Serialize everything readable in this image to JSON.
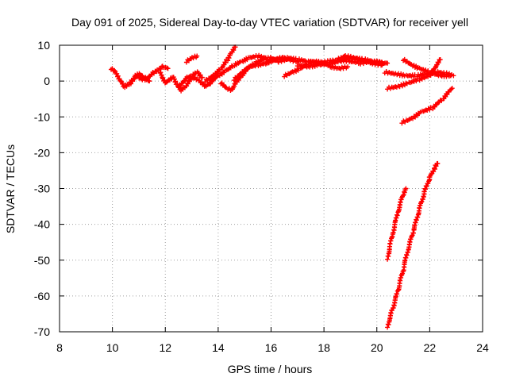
{
  "chart_data": {
    "type": "scatter",
    "title": "Day 091 of 2025, Sidereal Day-to-day VTEC variation (SDTVAR) for receiver yell",
    "xlabel": "GPS time / hours",
    "ylabel": "SDTVAR / TECUs",
    "xlim": [
      8,
      24
    ],
    "ylim": [
      -70,
      10
    ],
    "xticks": [
      "8",
      "10",
      "12",
      "14",
      "16",
      "18",
      "20",
      "22",
      "24"
    ],
    "yticks": [
      "10",
      "0",
      "-10",
      "-20",
      "-30",
      "-40",
      "-50",
      "-60",
      "-70"
    ],
    "grid": true,
    "marker": "plus",
    "series_color": "#ff0000",
    "series": [
      {
        "segments": [
          [
            [
              9.95,
              3.5
            ],
            [
              10.1,
              2.5
            ],
            [
              10.25,
              0.5
            ],
            [
              10.45,
              -1.5
            ],
            [
              10.6,
              -1.0
            ],
            [
              10.8,
              0.5
            ],
            [
              10.95,
              1.5
            ],
            [
              11.1,
              0.5
            ],
            [
              11.3,
              0.5
            ],
            [
              11.5,
              2.0
            ],
            [
              11.7,
              3.0
            ],
            [
              11.9,
              4.0
            ],
            [
              12.1,
              3.5
            ]
          ],
          [
            [
              10.7,
              -0.5
            ],
            [
              10.85,
              1.5
            ],
            [
              11.0,
              2.0
            ],
            [
              11.2,
              1.0
            ],
            [
              11.4,
              0.0
            ]
          ],
          [
            [
              11.8,
              2.5
            ],
            [
              11.9,
              0.5
            ],
            [
              12.0,
              -0.5
            ],
            [
              12.15,
              0.5
            ],
            [
              12.3,
              1.0
            ],
            [
              12.45,
              -1.0
            ],
            [
              12.6,
              -2.5
            ],
            [
              12.8,
              -1.5
            ],
            [
              12.95,
              0.5
            ],
            [
              13.1,
              1.0
            ],
            [
              13.3,
              0.0
            ],
            [
              13.5,
              -1.5
            ],
            [
              13.7,
              -0.5
            ],
            [
              13.85,
              1.0
            ]
          ],
          [
            [
              12.5,
              -1.5
            ],
            [
              12.7,
              0.0
            ],
            [
              12.8,
              1.0
            ],
            [
              13.0,
              1.5
            ],
            [
              13.2,
              2.5
            ],
            [
              13.4,
              1.0
            ]
          ],
          [
            [
              12.8,
              5.5
            ],
            [
              13.0,
              6.5
            ],
            [
              13.2,
              7.0
            ]
          ],
          [
            [
              13.5,
              0.0
            ],
            [
              13.8,
              1.5
            ],
            [
              14.1,
              3.5
            ],
            [
              14.35,
              6.0
            ],
            [
              14.5,
              8.0
            ],
            [
              14.65,
              9.5
            ]
          ],
          [
            [
              13.7,
              0.0
            ],
            [
              14.0,
              1.5
            ],
            [
              14.3,
              3.0
            ],
            [
              14.6,
              4.5
            ],
            [
              14.9,
              5.5
            ],
            [
              15.2,
              6.5
            ],
            [
              15.5,
              7.0
            ],
            [
              15.8,
              6.5
            ]
          ],
          [
            [
              14.1,
              -0.5
            ],
            [
              14.3,
              -2.0
            ],
            [
              14.5,
              -2.5
            ],
            [
              14.7,
              0.0
            ],
            [
              14.9,
              1.5
            ],
            [
              15.1,
              3.5
            ],
            [
              15.4,
              5.0
            ],
            [
              15.7,
              6.0
            ],
            [
              16.0,
              6.5
            ],
            [
              16.3,
              5.5
            ],
            [
              16.6,
              6.0
            ]
          ],
          [
            [
              14.6,
              0.5
            ],
            [
              14.9,
              2.5
            ],
            [
              15.2,
              4.0
            ],
            [
              15.5,
              4.5
            ],
            [
              15.8,
              5.0
            ],
            [
              16.1,
              6.0
            ],
            [
              16.4,
              6.5
            ],
            [
              16.7,
              6.0
            ],
            [
              17.0,
              5.5
            ]
          ],
          [
            [
              15.8,
              5.0
            ],
            [
              16.2,
              6.0
            ],
            [
              16.6,
              6.5
            ],
            [
              17.0,
              6.0
            ],
            [
              17.4,
              5.5
            ],
            [
              17.8,
              5.0
            ],
            [
              18.2,
              5.5
            ],
            [
              18.6,
              6.0
            ],
            [
              19.0,
              5.5
            ],
            [
              19.4,
              5.0
            ],
            [
              19.8,
              5.5
            ],
            [
              20.2,
              5.0
            ],
            [
              20.4,
              5.0
            ]
          ],
          [
            [
              16.5,
              1.5
            ],
            [
              16.8,
              2.5
            ],
            [
              17.1,
              3.5
            ],
            [
              17.4,
              5.0
            ],
            [
              17.7,
              5.5
            ],
            [
              18.0,
              5.0
            ],
            [
              18.3,
              4.0
            ],
            [
              18.6,
              3.5
            ],
            [
              18.9,
              4.0
            ]
          ],
          [
            [
              17.0,
              4.5
            ],
            [
              17.4,
              4.0
            ],
            [
              17.8,
              4.5
            ],
            [
              18.2,
              5.0
            ],
            [
              18.6,
              5.5
            ],
            [
              19.0,
              6.5
            ],
            [
              19.4,
              6.0
            ],
            [
              19.8,
              5.0
            ],
            [
              20.2,
              4.5
            ]
          ],
          [
            [
              18.5,
              6.0
            ],
            [
              18.8,
              7.0
            ],
            [
              19.1,
              6.5
            ],
            [
              19.5,
              6.0
            ],
            [
              19.9,
              5.5
            ],
            [
              20.3,
              5.0
            ]
          ],
          [
            [
              20.3,
              2.5
            ],
            [
              20.7,
              2.0
            ],
            [
              21.1,
              1.5
            ],
            [
              21.5,
              1.5
            ],
            [
              21.9,
              2.0
            ],
            [
              22.3,
              2.5
            ],
            [
              22.7,
              2.0
            ],
            [
              22.9,
              1.5
            ]
          ],
          [
            [
              20.4,
              -2.0
            ],
            [
              20.8,
              -1.5
            ],
            [
              21.2,
              -0.5
            ],
            [
              21.6,
              0.5
            ],
            [
              22.0,
              1.5
            ],
            [
              22.2,
              3.5
            ],
            [
              22.4,
              6.0
            ]
          ],
          [
            [
              21.0,
              6.0
            ],
            [
              21.3,
              4.5
            ],
            [
              21.6,
              3.5
            ],
            [
              22.0,
              2.5
            ],
            [
              22.4,
              1.5
            ],
            [
              22.8,
              1.5
            ]
          ],
          [
            [
              20.95,
              -11.5
            ],
            [
              21.3,
              -10.5
            ],
            [
              21.7,
              -8.5
            ],
            [
              22.1,
              -7.5
            ],
            [
              22.5,
              -5.0
            ],
            [
              22.85,
              -2.0
            ]
          ],
          [
            [
              20.4,
              -49.5
            ],
            [
              20.6,
              -42.5
            ],
            [
              20.8,
              -36.5
            ],
            [
              21.0,
              -31.5
            ],
            [
              21.1,
              -30.0
            ]
          ],
          [
            [
              20.4,
              -68.5
            ],
            [
              20.6,
              -63.5
            ],
            [
              20.8,
              -58.5
            ],
            [
              21.0,
              -52.5
            ],
            [
              21.2,
              -46.5
            ],
            [
              21.4,
              -41.5
            ],
            [
              21.6,
              -36.0
            ],
            [
              21.8,
              -31.0
            ],
            [
              22.0,
              -27.0
            ],
            [
              22.2,
              -24.0
            ],
            [
              22.3,
              -23.0
            ]
          ]
        ]
      }
    ]
  }
}
